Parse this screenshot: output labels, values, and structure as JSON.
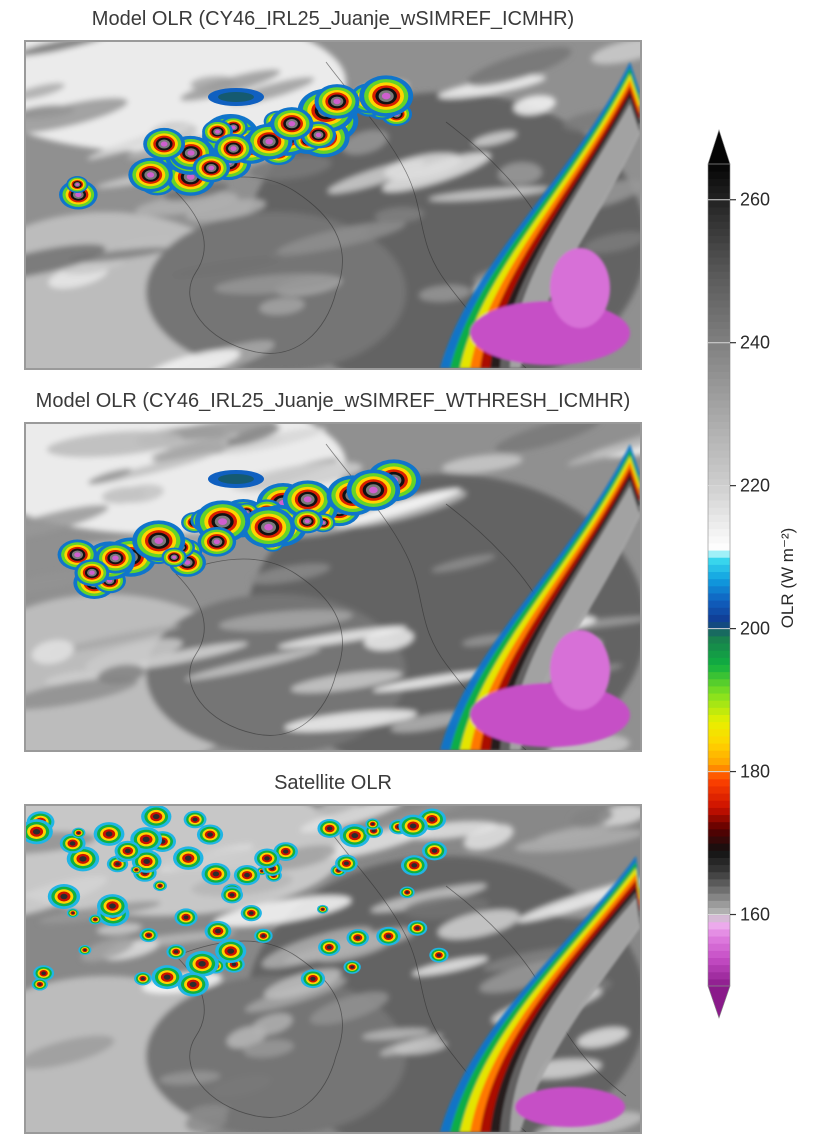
{
  "panels": [
    {
      "title": "Model OLR (CY46_IRL25_Juanje_wSIMREF_ICMHR)",
      "seed": 11,
      "has_deep_convection": true
    },
    {
      "title": "Model OLR (CY46_IRL25_Juanje_wSIMREF_WTHRESH_ICMHR)",
      "seed": 23,
      "has_deep_convection": true
    },
    {
      "title": "Satellite OLR",
      "seed": 47,
      "has_deep_convection": false
    }
  ],
  "chart_data": {
    "type": "heatmap",
    "variable": "OLR",
    "colorbar": {
      "label": "OLR (W m⁻²)",
      "min": 150,
      "max": 265,
      "ticks": [
        160,
        180,
        200,
        220,
        240,
        260
      ],
      "tick_labels": [
        "160",
        "180",
        "200",
        "220",
        "240",
        "260"
      ],
      "extend": "both",
      "color_stops": [
        {
          "value": 150,
          "color": "#8a1a8a"
        },
        {
          "value": 154,
          "color": "#c64fc6"
        },
        {
          "value": 157,
          "color": "#e080e0"
        },
        {
          "value": 159,
          "color": "#f0b8f0"
        },
        {
          "value": 160,
          "color": "#bbbbbb"
        },
        {
          "value": 163,
          "color": "#7a7a7a"
        },
        {
          "value": 166,
          "color": "#3a3a3a"
        },
        {
          "value": 169,
          "color": "#111111"
        },
        {
          "value": 172,
          "color": "#5a0000"
        },
        {
          "value": 175,
          "color": "#cc1100"
        },
        {
          "value": 179,
          "color": "#ff4400"
        },
        {
          "value": 181,
          "color": "#ffa000"
        },
        {
          "value": 184,
          "color": "#ffd400"
        },
        {
          "value": 187,
          "color": "#e8f000"
        },
        {
          "value": 191,
          "color": "#80e020"
        },
        {
          "value": 195,
          "color": "#10b040"
        },
        {
          "value": 199,
          "color": "#1a7a50"
        },
        {
          "value": 201,
          "color": "#103a90"
        },
        {
          "value": 204,
          "color": "#1060c0"
        },
        {
          "value": 207,
          "color": "#10a0e0"
        },
        {
          "value": 210,
          "color": "#40e0f0"
        },
        {
          "value": 211,
          "color": "#ffffff"
        },
        {
          "value": 214,
          "color": "#f0f0f0"
        },
        {
          "value": 220,
          "color": "#cfcfcf"
        },
        {
          "value": 230,
          "color": "#a8a8a8"
        },
        {
          "value": 240,
          "color": "#808080"
        },
        {
          "value": 250,
          "color": "#585858"
        },
        {
          "value": 258,
          "color": "#2e2e2e"
        },
        {
          "value": 265,
          "color": "#050505"
        }
      ]
    }
  }
}
